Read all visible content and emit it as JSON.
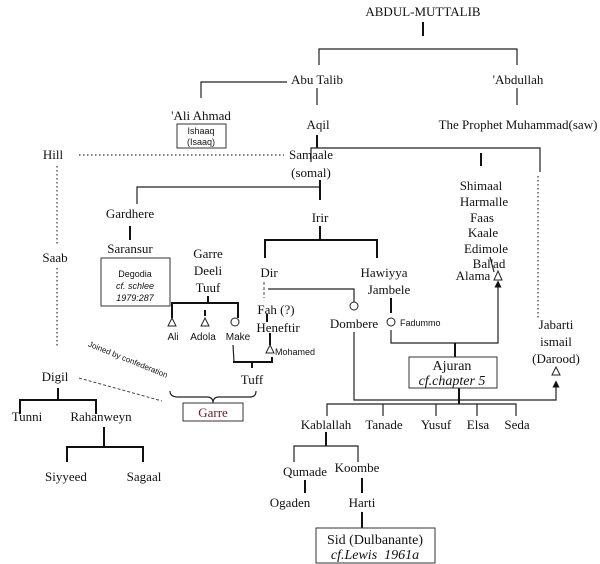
{
  "nodes": {
    "abdul_muttalib": "ABDUL-MUTTALIB",
    "abu_talib": "Abu Talib",
    "abdullah": "'Abdullah",
    "ali_ahmad": "'Ali Ahmad",
    "ishaaq_box": [
      "Ishaaq",
      "(Isaaq)"
    ],
    "aqil": "Aqil",
    "prophet": "The Prophet Muhammad(saw)",
    "hill": "Hill",
    "samaale": [
      "Samaale",
      "(somal)"
    ],
    "shimaal_group": [
      "Shimaal",
      "Harmalle",
      "Faas",
      "Kaale",
      "Edimole",
      "Bal'ad"
    ],
    "saab": "Saab",
    "gardhere": "Gardhere",
    "saransur": "Saransur",
    "degodia_box": [
      "Degodia",
      "cf. schlee",
      "1979:287"
    ],
    "irir": "Irir",
    "garre_group": [
      "Garre",
      "Deeli",
      "Tuuf"
    ],
    "dir": "Dir",
    "hawiyya": [
      "Hawiyya",
      "Jambele"
    ],
    "alama": "Alama",
    "jabarti": [
      "Jabarti",
      "ismail",
      "(Darood)"
    ],
    "ali": "Ali",
    "adola": "Adola",
    "make": "Make",
    "fah": "Fah (?)",
    "heneftir": "Heneftir",
    "mohamed": "Mohamed",
    "dombere": "Dombere",
    "fadummo": "Fadummo",
    "ajuran_box": [
      "Ajuran",
      "cf.chapter 5"
    ],
    "digil": "Digil",
    "confederation_note": "Joined by confederation",
    "tuff": "Tuff",
    "garre_box": "Garre",
    "tunni": "Tunni",
    "rahanweyn": "Rahanweyn",
    "siyyeed": "Siyyeed",
    "sagaal": "Sagaal",
    "children": [
      "Kablallah",
      "Tanade",
      "Yusuf",
      "Elsa",
      "Seda"
    ],
    "qumade": "Qumade",
    "koombe": "Koombe",
    "ogaden": "Ogaden",
    "harti": "Harti",
    "sid_box": [
      "Sid (Dulbanante)",
      "cf.Lewis  1961a"
    ]
  },
  "symbols": {
    "triangle": "male",
    "circle": "female"
  },
  "colors": {
    "garre_box_text": "#6b1a2a",
    "lines": "#222222"
  }
}
